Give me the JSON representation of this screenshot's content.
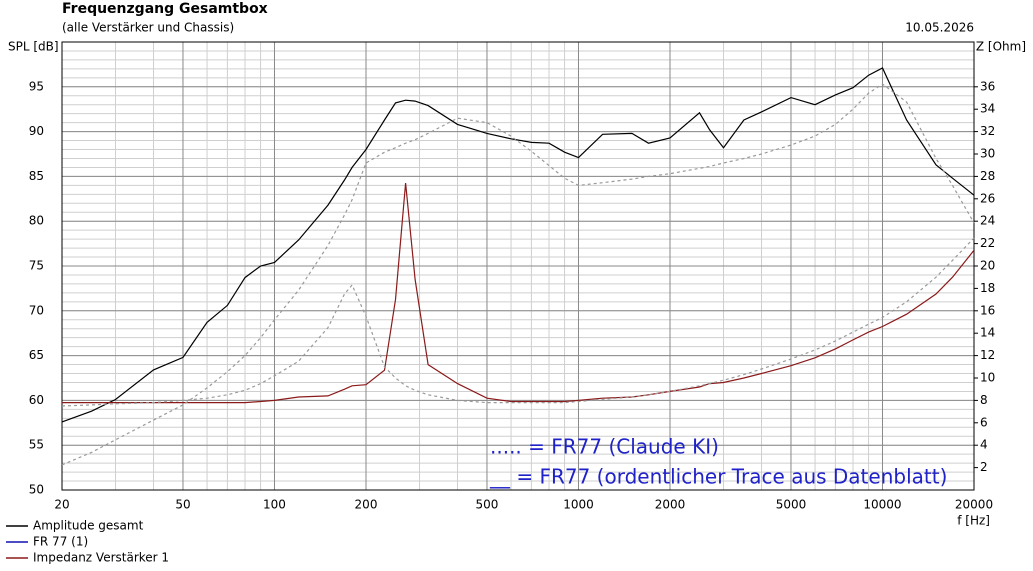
{
  "chart_data": {
    "type": "line",
    "title": "Frequenzgang Gesamtbox",
    "subtitle": "(alle Verstärker und Chassis)",
    "date": "10.05.2026",
    "y_label": "SPL [dB]",
    "y2_label": "Z [Ohm]",
    "x_label": "f [Hz]",
    "log_x": true,
    "grid": true,
    "legend": "bottom-left",
    "annotations": [
      {
        "text": "..... = FR77 (Claude KI)",
        "color": "#1f22c8"
      },
      {
        "text": "__ = FR77 (ordentlicher Trace aus Datenblatt)",
        "color": "#1f22c8"
      }
    ],
    "xlim": [
      20,
      20000
    ],
    "xticks": [
      20,
      50,
      100,
      200,
      500,
      1000,
      2000,
      5000,
      10000,
      20000
    ],
    "ylim": [
      50,
      100
    ],
    "yticks": [
      50,
      55,
      60,
      65,
      70,
      75,
      80,
      85,
      90,
      95
    ],
    "y2lim": [
      0,
      40
    ],
    "y2ticks": [
      2,
      4,
      6,
      8,
      10,
      12,
      14,
      16,
      18,
      20,
      22,
      24,
      26,
      28,
      30,
      32,
      34,
      36
    ],
    "x": [
      20,
      25,
      30,
      40,
      50,
      60,
      70,
      80,
      90,
      100,
      120,
      150,
      170,
      180,
      200,
      230,
      250,
      270,
      290,
      320,
      400,
      500,
      600,
      700,
      800,
      900,
      1000,
      1200,
      1500,
      1700,
      2000,
      2500,
      2700,
      3000,
      3500,
      4000,
      5000,
      6000,
      7000,
      8000,
      9000,
      10000,
      12000,
      15000,
      17000,
      20000
    ],
    "series": [
      {
        "name": "Amplitude gesamt",
        "color": "#000000",
        "axis": "y",
        "values": [
          57.6,
          58.8,
          60.1,
          63.4,
          64.8,
          68.7,
          70.6,
          73.7,
          75.0,
          75.4,
          77.9,
          81.8,
          84.6,
          86.0,
          88.0,
          91.3,
          93.2,
          93.5,
          93.4,
          92.9,
          90.8,
          89.8,
          89.2,
          88.8,
          88.7,
          87.7,
          87.1,
          89.7,
          89.8,
          88.7,
          89.3,
          92.1,
          90.2,
          88.2,
          91.3,
          92.2,
          93.8,
          93.0,
          94.1,
          94.9,
          96.3,
          97.1,
          91.3,
          86.3,
          84.8,
          82.9
        ]
      },
      {
        "name": "FR 77 (1)",
        "color": "#1010b0",
        "axis": "y",
        "values": [
          null,
          null,
          null,
          null,
          null,
          null,
          null,
          null,
          null,
          null,
          null,
          null,
          null,
          null,
          null,
          null,
          null,
          null,
          null,
          null,
          null,
          null,
          null,
          null,
          null,
          null,
          null,
          null,
          null,
          null,
          null,
          null,
          null,
          null,
          null,
          null,
          null,
          null,
          null,
          null,
          null,
          null,
          null,
          null,
          null,
          null
        ]
      },
      {
        "name": "Impedanz Verstärker 1",
        "color": "#8b1a1a",
        "axis": "y2",
        "values": [
          7.8,
          7.8,
          7.8,
          7.8,
          7.8,
          7.8,
          7.8,
          7.8,
          7.9,
          8.0,
          8.3,
          8.4,
          9.0,
          9.3,
          9.4,
          10.7,
          17.0,
          27.4,
          18.8,
          11.2,
          9.5,
          8.2,
          7.9,
          7.9,
          7.9,
          7.9,
          8.0,
          8.2,
          8.3,
          8.5,
          8.8,
          9.2,
          9.5,
          9.6,
          10.0,
          10.4,
          11.1,
          11.8,
          12.6,
          13.4,
          14.1,
          14.6,
          15.7,
          17.5,
          19.0,
          21.4
        ]
      },
      {
        "color": "#999999",
        "axis": "y",
        "dashed": true,
        "values": [
          52.8,
          54.2,
          55.6,
          57.8,
          59.5,
          61.4,
          63.2,
          65.0,
          67.0,
          69.0,
          72.3,
          77.3,
          80.7,
          82.4,
          86.5,
          87.7,
          88.2,
          88.7,
          89.1,
          89.8,
          91.5,
          91.0,
          89.5,
          87.8,
          86.2,
          84.8,
          84.0,
          84.3,
          84.7,
          85.0,
          85.3,
          85.9,
          86.1,
          86.5,
          87.0,
          87.5,
          88.5,
          89.5,
          90.8,
          92.5,
          94.3,
          95.3,
          93.3,
          87.0,
          84.0,
          79.8
        ]
      },
      {
        "color": "#999999",
        "axis": "y2",
        "dashed": true,
        "values": [
          7.5,
          7.6,
          7.7,
          7.8,
          8.0,
          8.2,
          8.5,
          8.9,
          9.5,
          10.2,
          11.5,
          14.5,
          17.5,
          18.3,
          15.5,
          11.0,
          10.0,
          9.3,
          8.9,
          8.5,
          8.0,
          7.8,
          7.8,
          7.8,
          7.8,
          7.8,
          7.9,
          8.1,
          8.3,
          8.5,
          8.8,
          9.3,
          9.5,
          9.8,
          10.3,
          10.8,
          11.7,
          12.5,
          13.3,
          14.1,
          14.8,
          15.4,
          16.8,
          19.0,
          20.5,
          22.5
        ]
      }
    ]
  }
}
